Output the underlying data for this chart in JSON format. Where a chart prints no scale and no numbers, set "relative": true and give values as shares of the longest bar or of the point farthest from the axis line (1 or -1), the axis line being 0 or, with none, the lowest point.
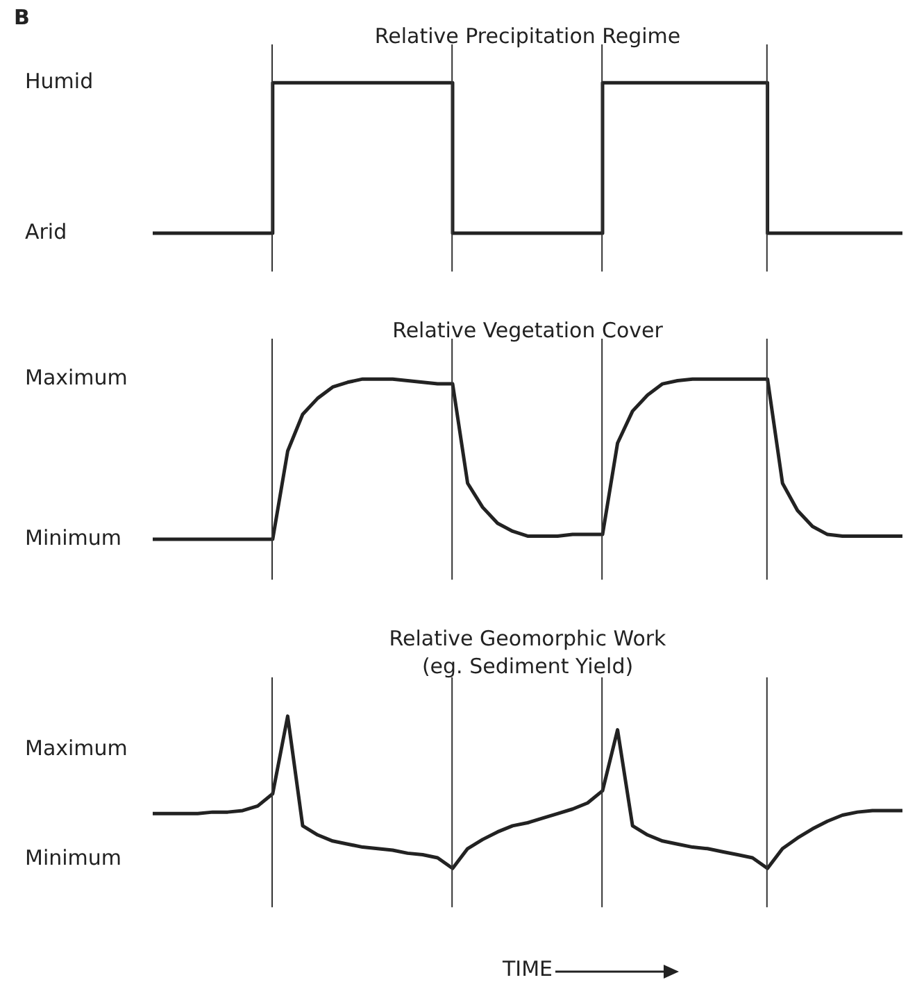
{
  "chart_data": [
    {
      "type": "step",
      "title": "Relative Precipitation Regime",
      "annotations": [
        "B",
        "Humid",
        "Arid"
      ],
      "relative": true,
      "marker": "none",
      "grid": "x",
      "legend": false,
      "categories": [
        null,
        null,
        null,
        null,
        null,
        null,
        null,
        null,
        null,
        null,
        null,
        null,
        null,
        null,
        null,
        null,
        null,
        null,
        null,
        null,
        null,
        null,
        null,
        null,
        null,
        null,
        null,
        null,
        null,
        null,
        null,
        null,
        null,
        null,
        null,
        null,
        null,
        null,
        null,
        null,
        null,
        null,
        null,
        null,
        null,
        null,
        null,
        null,
        null,
        null,
        null
      ],
      "series": [
        {
          "color": "#222222",
          "values": [
            0,
            0,
            0,
            0,
            0,
            0,
            0,
            0,
            1,
            1,
            1,
            1,
            1,
            1,
            1,
            1,
            1,
            1,
            1,
            1,
            0,
            0,
            0,
            0,
            0,
            0,
            0,
            0,
            0,
            0,
            1,
            1,
            1,
            1,
            1,
            1,
            1,
            1,
            1,
            1,
            1,
            0,
            0,
            0,
            0,
            0,
            0,
            0,
            0,
            0,
            0
          ]
        }
      ]
    },
    {
      "type": "line",
      "title": "Relative Vegetation Cover",
      "annotations": [
        "Maximum",
        "Minimum"
      ],
      "relative": true,
      "marker": "none",
      "grid": "x",
      "legend": false,
      "categories": [
        null,
        null,
        null,
        null,
        null,
        null,
        null,
        null,
        null,
        null,
        null,
        null,
        null,
        null,
        null,
        null,
        null,
        null,
        null,
        null,
        null,
        null,
        null,
        null,
        null,
        null,
        null,
        null,
        null,
        null,
        null,
        null,
        null,
        null,
        null,
        null,
        null,
        null,
        null,
        null,
        null,
        null,
        null,
        null,
        null,
        null,
        null,
        null,
        null,
        null,
        null
      ],
      "series": [
        {
          "color": "#222222",
          "values": [
            0,
            0,
            0,
            0,
            0,
            0,
            0,
            0,
            0,
            0.55,
            0.78,
            0.88,
            0.95,
            0.98,
            1,
            1,
            1,
            0.99,
            0.98,
            0.97,
            0.97,
            0.35,
            0.2,
            0.1,
            0.05,
            0.02,
            0.02,
            0.02,
            0.03,
            0.03,
            0.03,
            0.6,
            0.8,
            0.9,
            0.97,
            0.99,
            1,
            1,
            1,
            1,
            1,
            1,
            0.35,
            0.18,
            0.08,
            0.03,
            0.02,
            0.02,
            0.02,
            0.02,
            0.02
          ]
        }
      ]
    },
    {
      "type": "line",
      "title": "Relative Geomorphic Work",
      "subtitle": "(eg. Sediment Yield)",
      "xlabel": "TIME",
      "annotations": [
        "Maximum",
        "Minimum"
      ],
      "relative": true,
      "marker": "none",
      "grid": "x",
      "legend": false,
      "categories": [
        null,
        null,
        null,
        null,
        null,
        null,
        null,
        null,
        null,
        null,
        null,
        null,
        null,
        null,
        null,
        null,
        null,
        null,
        null,
        null,
        null,
        null,
        null,
        null,
        null,
        null,
        null,
        null,
        null,
        null,
        null,
        null,
        null,
        null,
        null,
        null,
        null,
        null,
        null,
        null,
        null,
        null,
        null,
        null,
        null,
        null,
        null,
        null,
        null,
        null,
        null
      ],
      "series": [
        {
          "color": "#222222",
          "values": [
            0.36,
            0.36,
            0.36,
            0.36,
            0.37,
            0.37,
            0.38,
            0.41,
            0.49,
            1,
            0.28,
            0.22,
            0.18,
            0.16,
            0.14,
            0.13,
            0.12,
            0.1,
            0.09,
            0.07,
            0,
            0.13,
            0.19,
            0.24,
            0.28,
            0.3,
            0.33,
            0.36,
            0.39,
            0.43,
            0.51,
            0.91,
            0.28,
            0.22,
            0.18,
            0.16,
            0.14,
            0.13,
            0.11,
            0.09,
            0.07,
            0,
            0.13,
            0.2,
            0.26,
            0.31,
            0.35,
            0.37,
            0.38,
            0.38,
            0.38
          ]
        }
      ]
    }
  ]
}
